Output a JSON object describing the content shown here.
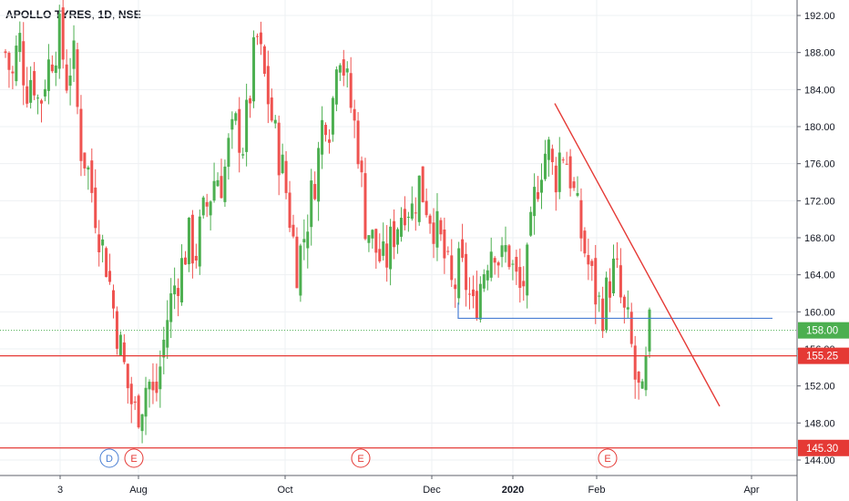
{
  "header": {
    "symbol": "APOLLO TYRES",
    "interval": "1D",
    "exchange": "NSE"
  },
  "colors": {
    "up": "#4caf50",
    "down": "#ef5350",
    "trendline": "#e53935",
    "support": "#4a7fd4",
    "level_line": "#e53935",
    "last_price_bg": "#4caf50",
    "level_label_bg": "#e53935",
    "grid": "#eef0f3",
    "axis_border": "#5d606b"
  },
  "chart_data": {
    "type": "candlestick",
    "y_axis": {
      "range": [
        143,
        194
      ],
      "ticks": [
        "144.00",
        "148.00",
        "152.00",
        "156.00",
        "160.00",
        "164.00",
        "168.00",
        "172.00",
        "176.00",
        "180.00",
        "184.00",
        "188.00",
        "192.00"
      ]
    },
    "x_axis": {
      "ticks": [
        {
          "label": "3",
          "bold": false
        },
        {
          "label": "Aug",
          "bold": false
        },
        {
          "label": "Oct",
          "bold": false
        },
        {
          "label": "Dec",
          "bold": false
        },
        {
          "label": "2020",
          "bold": true
        },
        {
          "label": "Feb",
          "bold": false
        },
        {
          "label": "Apr",
          "bold": false
        }
      ]
    },
    "price_labels": {
      "last_price": "158.00",
      "level_upper": "155.25",
      "level_lower": "145.30",
      "hidden_tick": "156.00"
    },
    "horizontal_levels": [
      {
        "name": "resistance-level",
        "value": 155.25
      },
      {
        "name": "support-level",
        "value": 145.3
      },
      {
        "name": "last-price-level",
        "value": 158.0
      },
      {
        "name": "neckline-level",
        "value": 159.3
      }
    ],
    "trendline": {
      "from_price": 182.5,
      "to_price": 149.8
    },
    "event_markers": [
      {
        "label": "D",
        "type": "dividend"
      },
      {
        "label": "E",
        "type": "earnings"
      },
      {
        "label": "E",
        "type": "earnings"
      },
      {
        "label": "E",
        "type": "earnings"
      }
    ],
    "series": [
      {
        "name": "",
        "close_path": [
          188,
          185,
          190,
          184,
          186,
          182,
          186,
          188,
          190,
          185,
          188,
          178,
          176,
          172,
          168,
          165,
          160,
          156,
          152,
          149,
          150,
          153,
          150,
          155,
          160,
          163,
          165,
          168,
          166,
          170,
          172,
          175,
          174,
          178,
          180,
          178,
          183,
          190,
          186,
          182,
          178,
          175,
          170,
          165,
          168,
          172,
          176,
          182,
          180,
          190,
          186,
          182,
          178,
          170,
          168,
          166,
          165,
          168,
          170,
          172,
          171,
          174,
          172,
          170,
          168,
          165,
          162,
          165,
          163,
          160,
          163,
          166,
          168,
          165,
          167,
          164,
          162,
          165,
          172,
          176,
          178,
          174,
          178,
          176,
          172,
          168,
          165,
          162,
          160,
          163,
          165,
          160,
          158,
          152,
          150,
          158
        ]
      }
    ]
  }
}
